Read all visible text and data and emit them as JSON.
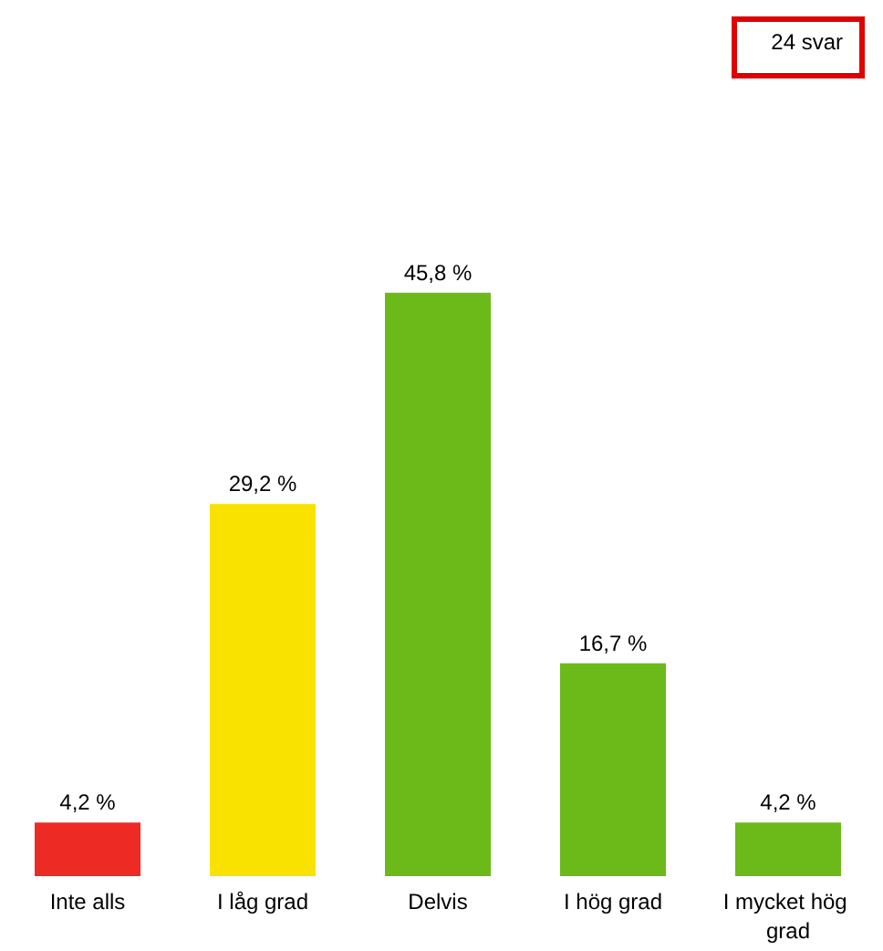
{
  "chart_data": {
    "type": "bar",
    "categories": [
      "Inte alls",
      "I låg grad",
      "Delvis",
      "I hög grad",
      "I mycket hög grad"
    ],
    "values": [
      4.2,
      29.2,
      45.8,
      16.7,
      4.2
    ],
    "colors": [
      "#ee2a24",
      "#f9e100",
      "#6cb91a",
      "#6cb91a",
      "#6cb91a"
    ],
    "value_labels": [
      "4,2 %",
      "29,2 %",
      "45,8 %",
      "16,7 %",
      "4,2 %"
    ],
    "annotations": [
      "24 svar"
    ]
  }
}
